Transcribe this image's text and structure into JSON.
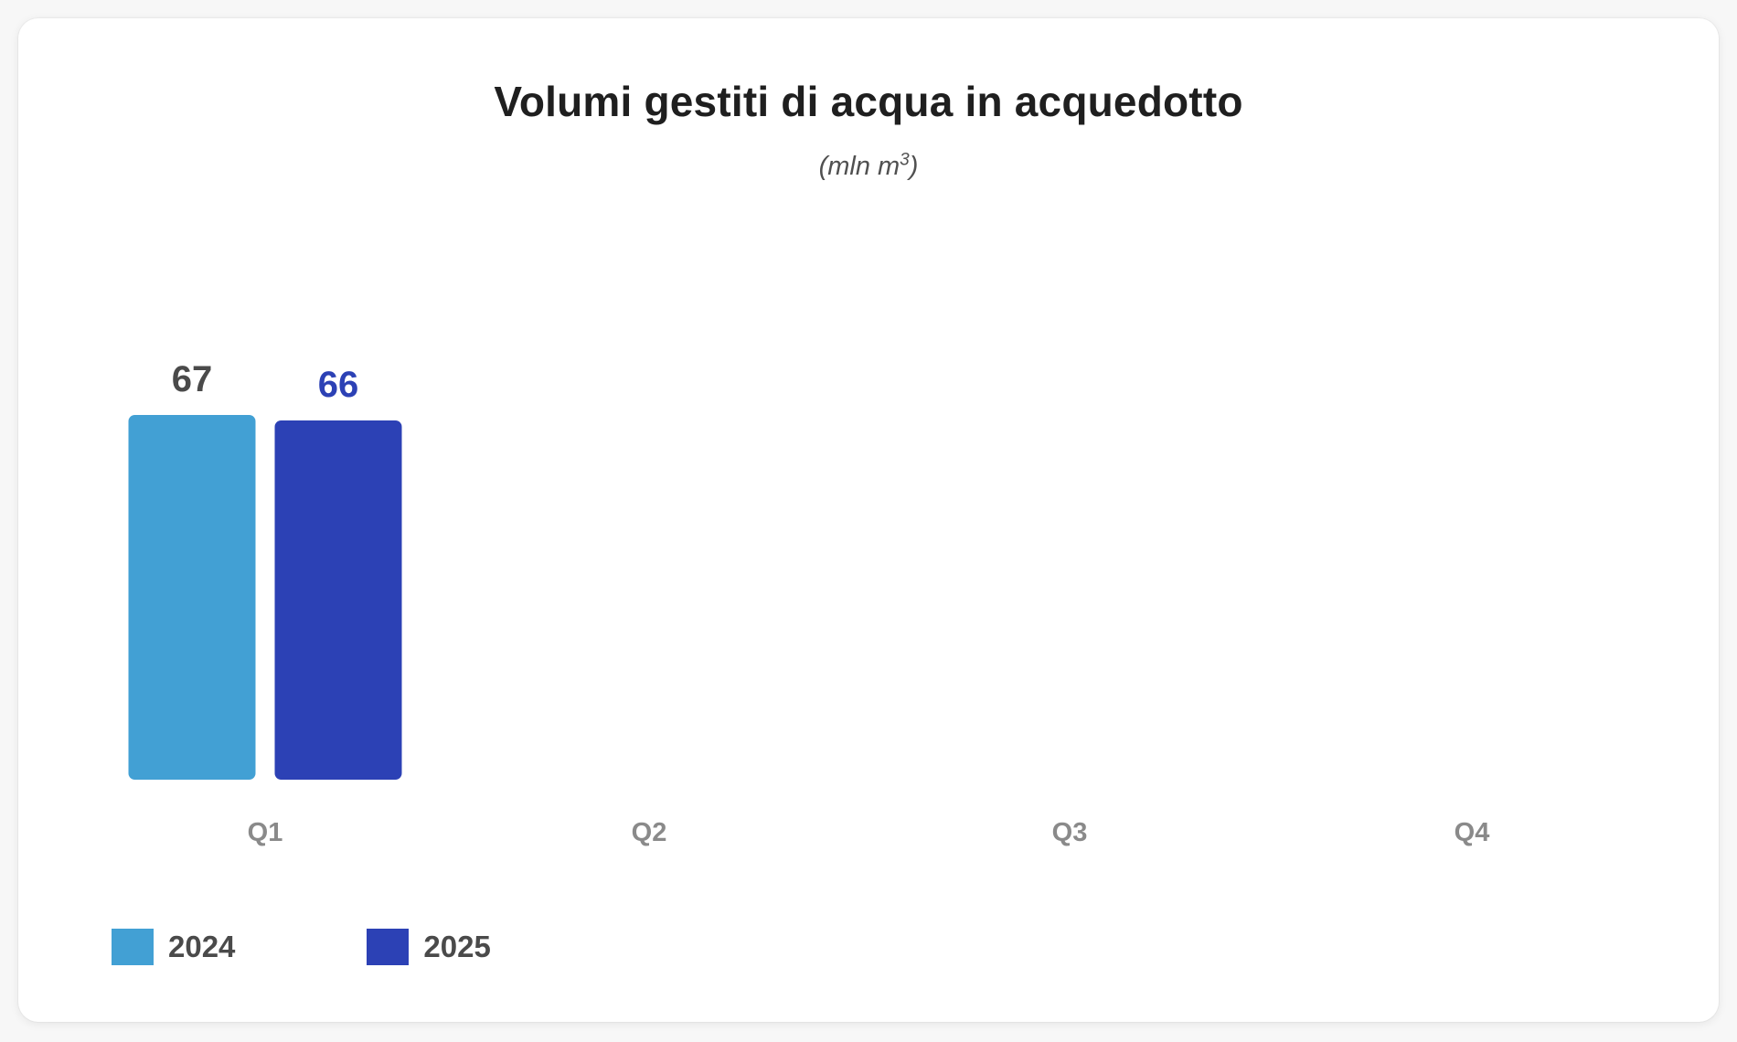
{
  "chart_data": {
    "type": "bar",
    "title": "Volumi gestiti di acqua in acquedotto",
    "subtitle_prefix": "(mln m",
    "subtitle_sup": "3",
    "subtitle_suffix": ")",
    "categories": [
      "Q1",
      "Q2",
      "Q3",
      "Q4"
    ],
    "series": [
      {
        "name": "2024",
        "color": "#42a0d4",
        "label_color": "#4a4a4a",
        "values": [
          67,
          null,
          null,
          null
        ]
      },
      {
        "name": "2025",
        "color": "#2c41b5",
        "label_color": "#2c41b5",
        "values": [
          66,
          null,
          null,
          null
        ]
      }
    ],
    "ylim": [
      0,
      67
    ],
    "grid": false,
    "legend_position": "bottom-left"
  }
}
